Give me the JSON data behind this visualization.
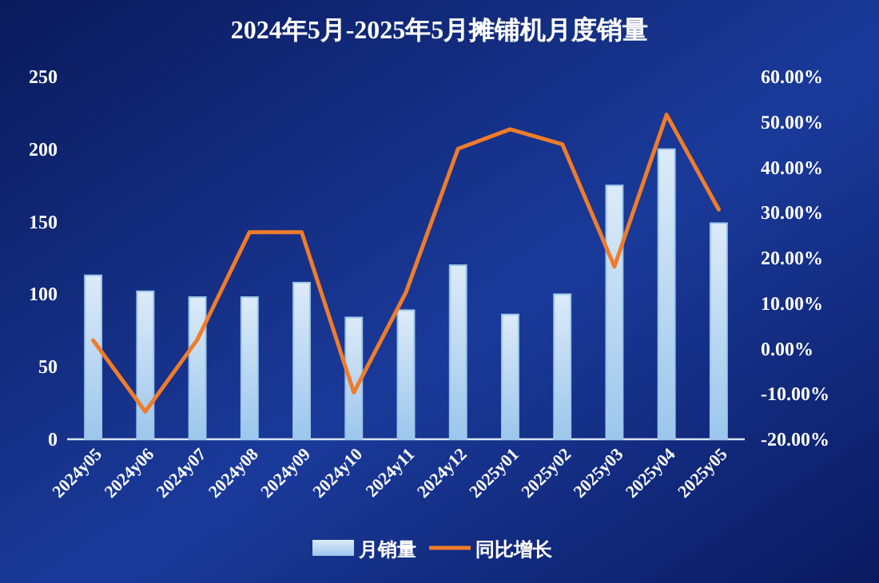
{
  "chart_data": {
    "type": "bar",
    "title": "2024年5月-2025年5月摊铺机月度销量",
    "categories": [
      "2024y05",
      "2024y06",
      "2024y07",
      "2024y08",
      "2024y09",
      "2024y10",
      "2024y11",
      "2024y12",
      "2025y01",
      "2025y02",
      "2025y03",
      "2025y04",
      "2025y05"
    ],
    "series": [
      {
        "name": "月销量",
        "color": "#9cc6ec",
        "values": [
          113,
          102,
          98,
          98,
          108,
          84,
          89,
          120,
          86,
          100,
          175,
          200,
          149
        ]
      },
      {
        "name": "同比增长",
        "type": "line",
        "axis": "y2",
        "color": "#f07c2a",
        "values": [
          1.8,
          -13.9,
          2.0,
          25.7,
          25.7,
          -9.7,
          12.4,
          44.1,
          48.4,
          45.1,
          18.1,
          51.6,
          30.7
        ]
      }
    ],
    "ylim": [
      0,
      250
    ],
    "yticks": [
      0,
      50,
      100,
      150,
      200,
      250
    ],
    "y2lim": [
      -20,
      60
    ],
    "y2ticks": [
      {
        "value": -20,
        "label": "-20.00%"
      },
      {
        "value": -10,
        "label": "-10.00%"
      },
      {
        "value": 0,
        "label": "0.00%"
      },
      {
        "value": 10,
        "label": "10.00%"
      },
      {
        "value": 20,
        "label": "20.00%"
      },
      {
        "value": 30,
        "label": "30.00%"
      },
      {
        "value": 40,
        "label": "40.00%"
      },
      {
        "value": 50,
        "label": "50.00%"
      },
      {
        "value": 60,
        "label": "60.00%"
      }
    ],
    "grid": false,
    "legend": "bottom",
    "marker": "none",
    "line_style": "solid"
  }
}
